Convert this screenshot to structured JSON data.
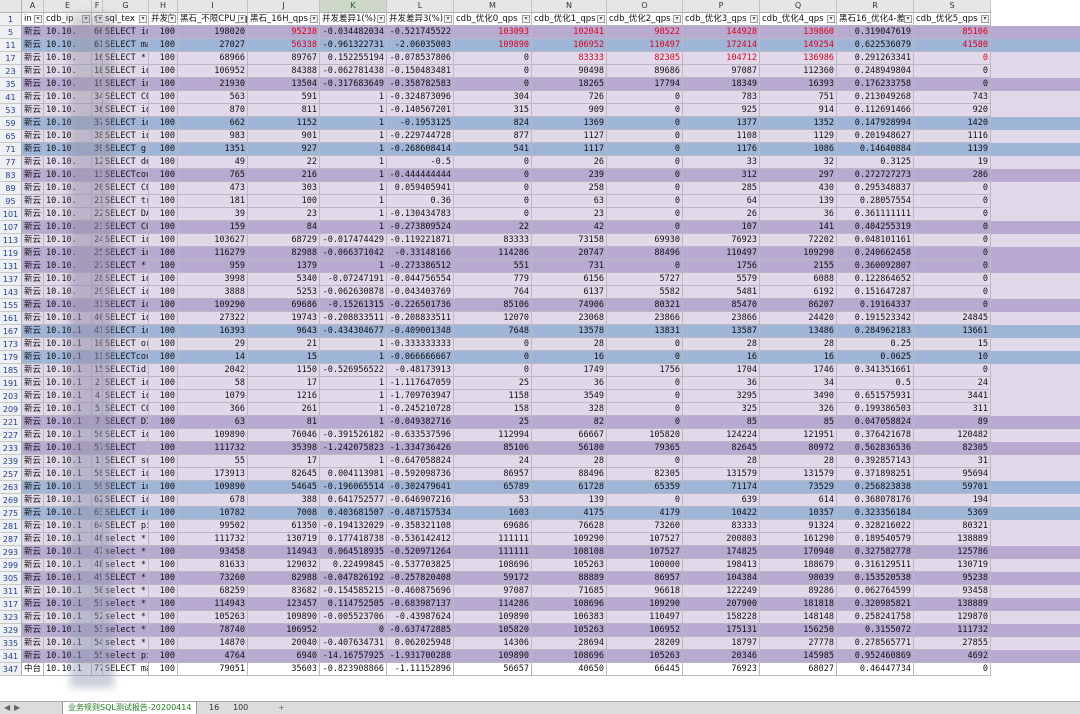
{
  "col_letters": [
    "A",
    "E",
    "F",
    "G",
    "H",
    "I",
    "J",
    "K",
    "L",
    "M",
    "N",
    "O",
    "P",
    "Q",
    "R",
    "S"
  ],
  "selected_col": "K",
  "header_row_num": "1",
  "headers": [
    "in",
    "cdb_ip",
    "sq",
    "sql_tex",
    "并发数",
    "黑石_不限CPU_qps",
    "黑石_16H_qps",
    "并发差异1(%)",
    "并发差异3(%)",
    "cdb_优化0_qps",
    "cdb_优化1_qps",
    "cdb_优化2_qps",
    "cdb_优化3_qps",
    "cdb_优化4_qps",
    "黑石16_优化4-差",
    "cdb_优化5_qps"
  ],
  "rows": [
    {
      "n": "5",
      "s": "purple",
      "c": [
        "新云",
        "10.10.",
        "60",
        "SELECT id",
        "100",
        "198020",
        "95238",
        "-0.034482034",
        "-0.521745522",
        "103093",
        "102041",
        "98522",
        "144928",
        "139860",
        "0.319047619",
        "85106"
      ],
      "r": [
        6,
        9,
        10,
        11,
        12,
        13,
        15
      ]
    },
    {
      "n": "11",
      "s": "blue",
      "c": [
        "新云",
        "10.10.",
        "61",
        "SELECT ma",
        "100",
        "27027",
        "56338",
        "-0.961322731",
        "-2.06035003",
        "109890",
        "106952",
        "110497",
        "172414",
        "149254",
        "0.622536079",
        "41580"
      ],
      "r": [
        6,
        9,
        10,
        11,
        12,
        13,
        15
      ]
    },
    {
      "n": "17",
      "s": "light",
      "c": [
        "新云",
        "10.10.",
        "16",
        "SELECT * FROM",
        "100",
        "68966",
        "89767",
        "0.152255194",
        "-0.078537806",
        "0",
        "83333",
        "82305",
        "104712",
        "136986",
        "0.291263341",
        "0"
      ],
      "r": [
        10,
        11,
        12,
        13,
        15
      ]
    },
    {
      "n": "23",
      "s": "light",
      "c": [
        "新云",
        "10.10.",
        "18",
        "SELECT id",
        "100",
        "106952",
        "84388",
        "-0.062781438",
        "-0.150483481",
        "0",
        "90498",
        "89686",
        "97087",
        "112360",
        "0.248949804",
        "0"
      ]
    },
    {
      "n": "35",
      "s": "purple",
      "c": [
        "新云",
        "10.10.",
        "19",
        "SELECT id",
        "100",
        "21930",
        "13504",
        "-0.317683649",
        "-0.358782583",
        "0",
        "18265",
        "17794",
        "18349",
        "16393",
        "0.176233758",
        "0"
      ]
    },
    {
      "n": "41",
      "s": "light",
      "c": [
        "新云",
        "10.10.",
        "34",
        "SELECT CO",
        "100",
        "563",
        "591",
        "1",
        "-0.324873096",
        "304",
        "726",
        "0",
        "783",
        "751",
        "0.213049268",
        "743"
      ]
    },
    {
      "n": "53",
      "s": "light",
      "c": [
        "新云",
        "10.10.",
        "36",
        "SELECT id",
        "100",
        "870",
        "811",
        "1",
        "-0.140567201",
        "315",
        "909",
        "0",
        "925",
        "914",
        "0.112691466",
        "920"
      ]
    },
    {
      "n": "59",
      "s": "blue",
      "c": [
        "新云",
        "10.10",
        "37",
        "SELECT id",
        "100",
        "662",
        "1152",
        "1",
        "-0.1953125",
        "824",
        "1369",
        "0",
        "1377",
        "1352",
        "0.147928994",
        "1420"
      ]
    },
    {
      "n": "65",
      "s": "light",
      "c": [
        "新云",
        "10.10",
        "38",
        "SELECT id",
        "100",
        "983",
        "901",
        "1",
        "-0.229744728",
        "877",
        "1127",
        "0",
        "1108",
        "1129",
        "0.201948627",
        "1116"
      ]
    },
    {
      "n": "71",
      "s": "blue",
      "c": [
        "新云",
        "10.10",
        "39",
        "SELECT g.",
        "100",
        "1351",
        "927",
        "1",
        "-0.268608414",
        "541",
        "1117",
        "0",
        "1176",
        "1086",
        "0.14640884",
        "1139"
      ]
    },
    {
      "n": "77",
      "s": "light",
      "c": [
        "新云",
        "10.10.",
        "12",
        "SELECT de",
        "100",
        "49",
        "22",
        "1",
        "-0.5",
        "0",
        "26",
        "0",
        "33",
        "32",
        "0.3125",
        "19"
      ]
    },
    {
      "n": "83",
      "s": "purple",
      "c": [
        "新云",
        "10.10.",
        "13",
        "SELECTcou",
        "100",
        "765",
        "216",
        "1",
        "-0.444444444",
        "0",
        "239",
        "0",
        "312",
        "297",
        "0.272727273",
        "286"
      ]
    },
    {
      "n": "89",
      "s": "light",
      "c": [
        "新云",
        "10.10.",
        "20",
        "SELECT CO",
        "100",
        "473",
        "303",
        "1",
        "0.059405941",
        "0",
        "258",
        "0",
        "285",
        "430",
        "0.295348837",
        "0"
      ]
    },
    {
      "n": "95",
      "s": "light",
      "c": [
        "新云",
        "10.10.",
        "21",
        "SELECT tr",
        "100",
        "181",
        "100",
        "1",
        "0.36",
        "0",
        "63",
        "0",
        "64",
        "139",
        "0.28057554",
        "0"
      ]
    },
    {
      "n": "101",
      "s": "light",
      "c": [
        "新云",
        "10.10.",
        "22",
        "SELECT DA",
        "100",
        "39",
        "23",
        "1",
        "-0.130434783",
        "0",
        "23",
        "0",
        "26",
        "36",
        "0.361111111",
        "0"
      ]
    },
    {
      "n": "107",
      "s": "purple",
      "c": [
        "新云",
        "10.10.",
        "23",
        "SELECT CO",
        "100",
        "159",
        "84",
        "1",
        "-0.273809524",
        "22",
        "42",
        "0",
        "107",
        "141",
        "0.404255319",
        "0"
      ]
    },
    {
      "n": "113",
      "s": "light",
      "c": [
        "新云",
        "10.10.",
        "24",
        "SELECT id",
        "100",
        "103627",
        "68729",
        "-0.017474429",
        "-0.119221871",
        "83333",
        "73158",
        "69930",
        "76923",
        "72202",
        "0.048101161",
        "0"
      ]
    },
    {
      "n": "119",
      "s": "purple",
      "c": [
        "新云",
        "10.10.",
        "25",
        "SELECT id",
        "100",
        "116279",
        "82988",
        "-0.066371042",
        "-0.33148166",
        "114286",
        "20747",
        "88496",
        "110497",
        "109290",
        "0.240662458",
        "0"
      ]
    },
    {
      "n": "131",
      "s": "purple",
      "c": [
        "新云",
        "10.10.",
        "27",
        "SELECT *",
        "100",
        "959",
        "1379",
        "1",
        "-0.273386512",
        "551",
        "731",
        "0",
        "1756",
        "2155",
        "0.360092807",
        "0"
      ]
    },
    {
      "n": "137",
      "s": "light",
      "c": [
        "新云",
        "10.10.",
        "28",
        "SELECT id",
        "100",
        "3998",
        "5340",
        "-0.07247191",
        "-0.044756554",
        "779",
        "6156",
        "5727",
        "5579",
        "6088",
        "0.122864652",
        "0"
      ]
    },
    {
      "n": "143",
      "s": "light",
      "c": [
        "新云",
        "10.10.",
        "29",
        "SELECT id",
        "100",
        "3888",
        "5253",
        "-0.062630878",
        "-0.043403769",
        "764",
        "6137",
        "5582",
        "5481",
        "6192",
        "0.151647287",
        "0"
      ]
    },
    {
      "n": "155",
      "s": "purple",
      "c": [
        "新云",
        "10.10.",
        "31",
        "SELECT id",
        "100",
        "109290",
        "69686",
        "-0.15261315",
        "-0.226501736",
        "85106",
        "74906",
        "80321",
        "85470",
        "86207",
        "0.19164337",
        "0"
      ]
    },
    {
      "n": "161",
      "s": "light",
      "c": [
        "新云",
        "10.10.1",
        "40",
        "SELECT id",
        "100",
        "27322",
        "19743",
        "-0.208833511",
        "-0.208833511",
        "12070",
        "23068",
        "23866",
        "23866",
        "24420",
        "0.191523342",
        "24845"
      ]
    },
    {
      "n": "167",
      "s": "blue",
      "c": [
        "新云",
        "10.10.1",
        "41",
        "SELECT id",
        "100",
        "16393",
        "9643",
        "-0.434304677",
        "-0.409001348",
        "7648",
        "13578",
        "13831",
        "13587",
        "13486",
        "0.284962183",
        "13661"
      ]
    },
    {
      "n": "173",
      "s": "light",
      "c": [
        "新云",
        "10.10.1",
        "10",
        "SELECT or",
        "100",
        "29",
        "21",
        "1",
        "-0.333333333",
        "0",
        "28",
        "0",
        "28",
        "28",
        "0.25",
        "15"
      ]
    },
    {
      "n": "179",
      "s": "blue",
      "c": [
        "新云",
        "10.10.1",
        "11",
        "SELECTcou",
        "100",
        "14",
        "15",
        "1",
        "-0.066666667",
        "0",
        "16",
        "0",
        "16",
        "16",
        "0.0625",
        "10"
      ]
    },
    {
      "n": "185",
      "s": "light",
      "c": [
        "新云",
        "10.10.1",
        "15",
        "SELECTid,",
        "100",
        "2042",
        "1150",
        "-0.526956522",
        "-0.48173913",
        "0",
        "1749",
        "1756",
        "1704",
        "1746",
        "0.341351661",
        "0"
      ]
    },
    {
      "n": "191",
      "s": "light",
      "c": [
        "新云",
        "10.10.1",
        "2",
        "SELECT id",
        "100",
        "58",
        "17",
        "1",
        "-1.117647059",
        "25",
        "36",
        "0",
        "36",
        "34",
        "0.5",
        "24"
      ]
    },
    {
      "n": "203",
      "s": "light",
      "c": [
        "新云",
        "10.10.1",
        "4",
        "SELECT id",
        "100",
        "1079",
        "1216",
        "1",
        "-1.709703947",
        "1158",
        "3549",
        "0",
        "3295",
        "3490",
        "0.651575931",
        "3441"
      ]
    },
    {
      "n": "209",
      "s": "light",
      "c": [
        "新云",
        "10.10.1",
        "5",
        "SELECT CO",
        "100",
        "366",
        "261",
        "1",
        "-0.245210728",
        "158",
        "328",
        "0",
        "325",
        "326",
        "0.199386503",
        "311"
      ]
    },
    {
      "n": "221",
      "s": "purple",
      "c": [
        "新云",
        "10.10.1",
        "7",
        "SELECT DI",
        "100",
        "63",
        "81",
        "1",
        "-0.049382716",
        "25",
        "82",
        "0",
        "85",
        "85",
        "0.047058824",
        "89"
      ]
    },
    {
      "n": "227",
      "s": "light",
      "c": [
        "新云",
        "10.10.1",
        "56",
        "SELECT id",
        "100",
        "109890",
        "76046",
        "-0.391526182",
        "-0.633537596",
        "112994",
        "66667",
        "105820",
        "124224",
        "121951",
        "0.376421678",
        "120482"
      ]
    },
    {
      "n": "233",
      "s": "purple",
      "c": [
        "新云",
        "10.10.1",
        "57",
        "SELECT",
        "100",
        "111732",
        "35398",
        "-1.242075823",
        "-1.334736426",
        "85106",
        "56180",
        "79365",
        "82645",
        "80972",
        "0.562836536",
        "82305"
      ]
    },
    {
      "n": "239",
      "s": "light",
      "c": [
        "新云",
        "10.10.1",
        "1",
        "SELECT sum(id",
        "100",
        "55",
        "17",
        "1",
        "-0.647058824",
        "24",
        "28",
        "0",
        "28",
        "28",
        "0.392857143",
        "31"
      ]
    },
    {
      "n": "257",
      "s": "light",
      "c": [
        "新云",
        "10.10.1",
        "58",
        "SELECT id",
        "100",
        "173913",
        "82645",
        "0.004113981",
        "-0.592098736",
        "86957",
        "88496",
        "82305",
        "131579",
        "131579",
        "0.371898251",
        "95694"
      ]
    },
    {
      "n": "263",
      "s": "blue",
      "c": [
        "新云",
        "10.10.1",
        "59",
        "SELECT id",
        "100",
        "109890",
        "54645",
        "-0.196065514",
        "-0.302479641",
        "65789",
        "61728",
        "65359",
        "71174",
        "73529",
        "0.256823838",
        "59701"
      ]
    },
    {
      "n": "269",
      "s": "light",
      "c": [
        "新云",
        "10.10.1",
        "62",
        "SELECT id",
        "100",
        "678",
        "388",
        "0.641752577",
        "-0.646907216",
        "53",
        "139",
        "0",
        "639",
        "614",
        "0.368078176",
        "194"
      ]
    },
    {
      "n": "275",
      "s": "blue",
      "c": [
        "新云",
        "10.10.1",
        "63",
        "SELECT id",
        "100",
        "10782",
        "7008",
        "0.403681507",
        "-0.487157534",
        "1603",
        "4175",
        "4179",
        "10422",
        "10357",
        "0.323356184",
        "5369"
      ]
    },
    {
      "n": "281",
      "s": "light",
      "c": [
        "新云",
        "10.10.1",
        "64",
        "SELECT pi",
        "100",
        "99502",
        "61350",
        "-0.194132029",
        "-0.358321108",
        "69686",
        "76628",
        "73260",
        "83333",
        "91324",
        "0.328216022",
        "80321"
      ]
    },
    {
      "n": "287",
      "s": "light",
      "c": [
        "新云",
        "10.10.1",
        "46",
        "select *",
        "100",
        "111732",
        "130719",
        "0.177418738",
        "-0.536142412",
        "111111",
        "109290",
        "107527",
        "200803",
        "161290",
        "0.189540579",
        "138889"
      ]
    },
    {
      "n": "293",
      "s": "purple",
      "c": [
        "新云",
        "10.10.1",
        "47",
        "select *",
        "100",
        "93458",
        "114943",
        "0.064518935",
        "-0.520971264",
        "111111",
        "108108",
        "107527",
        "174825",
        "170940",
        "0.327582778",
        "125786"
      ]
    },
    {
      "n": "299",
      "s": "light",
      "c": [
        "新云",
        "10.10.1",
        "48",
        "select *",
        "100",
        "81633",
        "129032",
        "0.22499845",
        "-0.537703825",
        "108696",
        "105263",
        "100000",
        "198413",
        "188679",
        "0.316129511",
        "130719"
      ]
    },
    {
      "n": "305",
      "s": "purple",
      "c": [
        "新云",
        "10.10.1",
        "49",
        "SELECT *",
        "100",
        "73260",
        "82988",
        "-0.047826192",
        "-0.257820408",
        "59172",
        "88889",
        "86957",
        "104384",
        "98039",
        "0.153520538",
        "95238"
      ]
    },
    {
      "n": "311",
      "s": "light",
      "c": [
        "新云",
        "10.10.1",
        "50",
        "select *",
        "100",
        "68259",
        "83682",
        "-0.154585215",
        "-0.460875696",
        "97087",
        "71685",
        "96618",
        "122249",
        "89286",
        "0.062764599",
        "93458"
      ]
    },
    {
      "n": "317",
      "s": "purple",
      "c": [
        "新云",
        "10.10.1",
        "51",
        "select *",
        "100",
        "114943",
        "123457",
        "0.114752505",
        "-0.683987137",
        "114286",
        "108696",
        "109290",
        "207900",
        "181818",
        "0.320985821",
        "138889"
      ]
    },
    {
      "n": "323",
      "s": "light",
      "c": [
        "新云",
        "10.10.1",
        "52",
        "select *",
        "100",
        "105263",
        "109890",
        "-0.005523706",
        "-0.43987624",
        "109890",
        "106383",
        "110497",
        "158228",
        "148148",
        "0.258241758",
        "129870"
      ]
    },
    {
      "n": "329",
      "s": "purple",
      "c": [
        "新云",
        "10.10.1",
        "53",
        "select *",
        "100",
        "78740",
        "106952",
        "0",
        "-0.637472885",
        "105820",
        "105263",
        "106952",
        "175131",
        "156250",
        "0.3155072",
        "111732"
      ]
    },
    {
      "n": "335",
      "s": "light",
      "c": [
        "新云",
        "10.10.1",
        "54",
        "select *",
        "100",
        "14870",
        "20040",
        "-0.407634731",
        "0.062025948",
        "14306",
        "28694",
        "28209",
        "18797",
        "27778",
        "0.278565771",
        "27855"
      ]
    },
    {
      "n": "341",
      "s": "purple",
      "c": [
        "新云",
        "10.10.1",
        "55",
        "select pi",
        "100",
        "4764",
        "6940",
        "-14.16757925",
        "-1.931700288",
        "109890",
        "108696",
        "105263",
        "20346",
        "145985",
        "0.952460869",
        "4692"
      ]
    },
    {
      "n": "347",
      "s": "white",
      "c": [
        "中台",
        "10.10.1",
        "77",
        "SELECT ma",
        "100",
        "79051",
        "35603",
        "-0.823908866",
        "-1.11152896",
        "56657",
        "40650",
        "66445",
        "76923",
        "68027",
        "0.46447734",
        "0"
      ]
    }
  ],
  "tabs": {
    "active": "业务规则SQL测试报告-20200414",
    "others": [
      "16",
      "100"
    ],
    "add": "+"
  }
}
